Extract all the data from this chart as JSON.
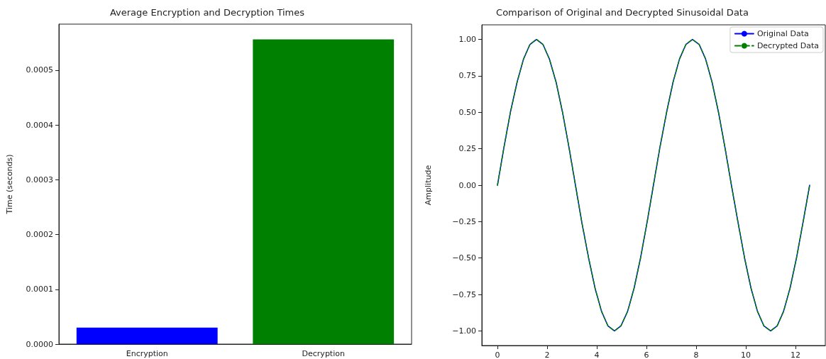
{
  "chart_data": [
    {
      "type": "bar",
      "title": "Average Encryption and Decryption Times",
      "ylabel": "Time (seconds)",
      "categories": [
        "Encryption",
        "Decryption"
      ],
      "values": [
        3e-05,
        0.000556
      ],
      "colors": [
        "#0000ff",
        "#008000"
      ],
      "ylim": [
        0,
        0.000584
      ],
      "yticks": [
        {
          "value": 0,
          "label": "0.0000"
        },
        {
          "value": 0.0001,
          "label": "0.0001"
        },
        {
          "value": 0.0002,
          "label": "0.0002"
        },
        {
          "value": 0.0003,
          "label": "0.0003"
        },
        {
          "value": 0.0004,
          "label": "0.0004"
        },
        {
          "value": 0.0005,
          "label": "0.0005"
        }
      ],
      "grid": false,
      "legend": false
    },
    {
      "type": "line",
      "title": "Comparison of Original and Decrypted Sinusoidal Data",
      "ylabel": "Amplitude",
      "x": [
        0,
        0.26,
        0.52,
        0.79,
        1.05,
        1.31,
        1.57,
        1.83,
        2.09,
        2.36,
        2.62,
        2.88,
        3.14,
        3.4,
        3.67,
        3.93,
        4.19,
        4.45,
        4.71,
        4.97,
        5.24,
        5.5,
        5.76,
        6.02,
        6.28,
        6.54,
        6.81,
        7.07,
        7.33,
        7.59,
        7.85,
        8.12,
        8.38,
        8.64,
        8.9,
        9.16,
        9.42,
        9.69,
        9.95,
        10.21,
        10.47,
        10.73,
        11,
        11.26,
        11.52,
        11.78,
        12.04,
        12.3,
        12.57
      ],
      "series": [
        {
          "name": "Original Data",
          "color": "#0000ff",
          "line_style": "solid",
          "values": [
            0,
            0.259,
            0.5,
            0.707,
            0.866,
            0.966,
            1,
            0.966,
            0.866,
            0.707,
            0.5,
            0.259,
            0,
            -0.259,
            -0.5,
            -0.707,
            -0.866,
            -0.966,
            -1,
            -0.966,
            -0.866,
            -0.707,
            -0.5,
            -0.259,
            0,
            0.259,
            0.5,
            0.707,
            0.866,
            0.966,
            1,
            0.966,
            0.866,
            0.707,
            0.5,
            0.259,
            0,
            -0.259,
            -0.5,
            -0.707,
            -0.866,
            -0.966,
            -1,
            -0.966,
            -0.866,
            -0.707,
            -0.5,
            -0.259,
            0
          ]
        },
        {
          "name": "Decrypted Data",
          "color": "#008000",
          "line_style": "dashed",
          "values": [
            0,
            0.259,
            0.5,
            0.707,
            0.866,
            0.966,
            1,
            0.966,
            0.866,
            0.707,
            0.5,
            0.259,
            0,
            -0.259,
            -0.5,
            -0.707,
            -0.866,
            -0.966,
            -1,
            -0.966,
            -0.866,
            -0.707,
            -0.5,
            -0.259,
            0,
            0.259,
            0.5,
            0.707,
            0.866,
            0.966,
            1,
            0.966,
            0.866,
            0.707,
            0.5,
            0.259,
            0,
            -0.259,
            -0.5,
            -0.707,
            -0.866,
            -0.966,
            -1,
            -0.966,
            -0.866,
            -0.707,
            -0.5,
            -0.259,
            0
          ]
        }
      ],
      "xlim": [
        -0.63,
        13.2
      ],
      "xticks": [
        0,
        2,
        4,
        6,
        8,
        10,
        12
      ],
      "ylim": [
        -1.1,
        1.1
      ],
      "yticks": [
        {
          "value": -1,
          "label": "−1.00"
        },
        {
          "value": -0.75,
          "label": "−0.75"
        },
        {
          "value": -0.5,
          "label": "−0.50"
        },
        {
          "value": -0.25,
          "label": "−0.25"
        },
        {
          "value": 0,
          "label": "0.00"
        },
        {
          "value": 0.25,
          "label": "0.25"
        },
        {
          "value": 0.5,
          "label": "0.50"
        },
        {
          "value": 0.75,
          "label": "0.75"
        },
        {
          "value": 1,
          "label": "1.00"
        }
      ],
      "grid": false,
      "legend": "top right",
      "marker": "none"
    }
  ]
}
